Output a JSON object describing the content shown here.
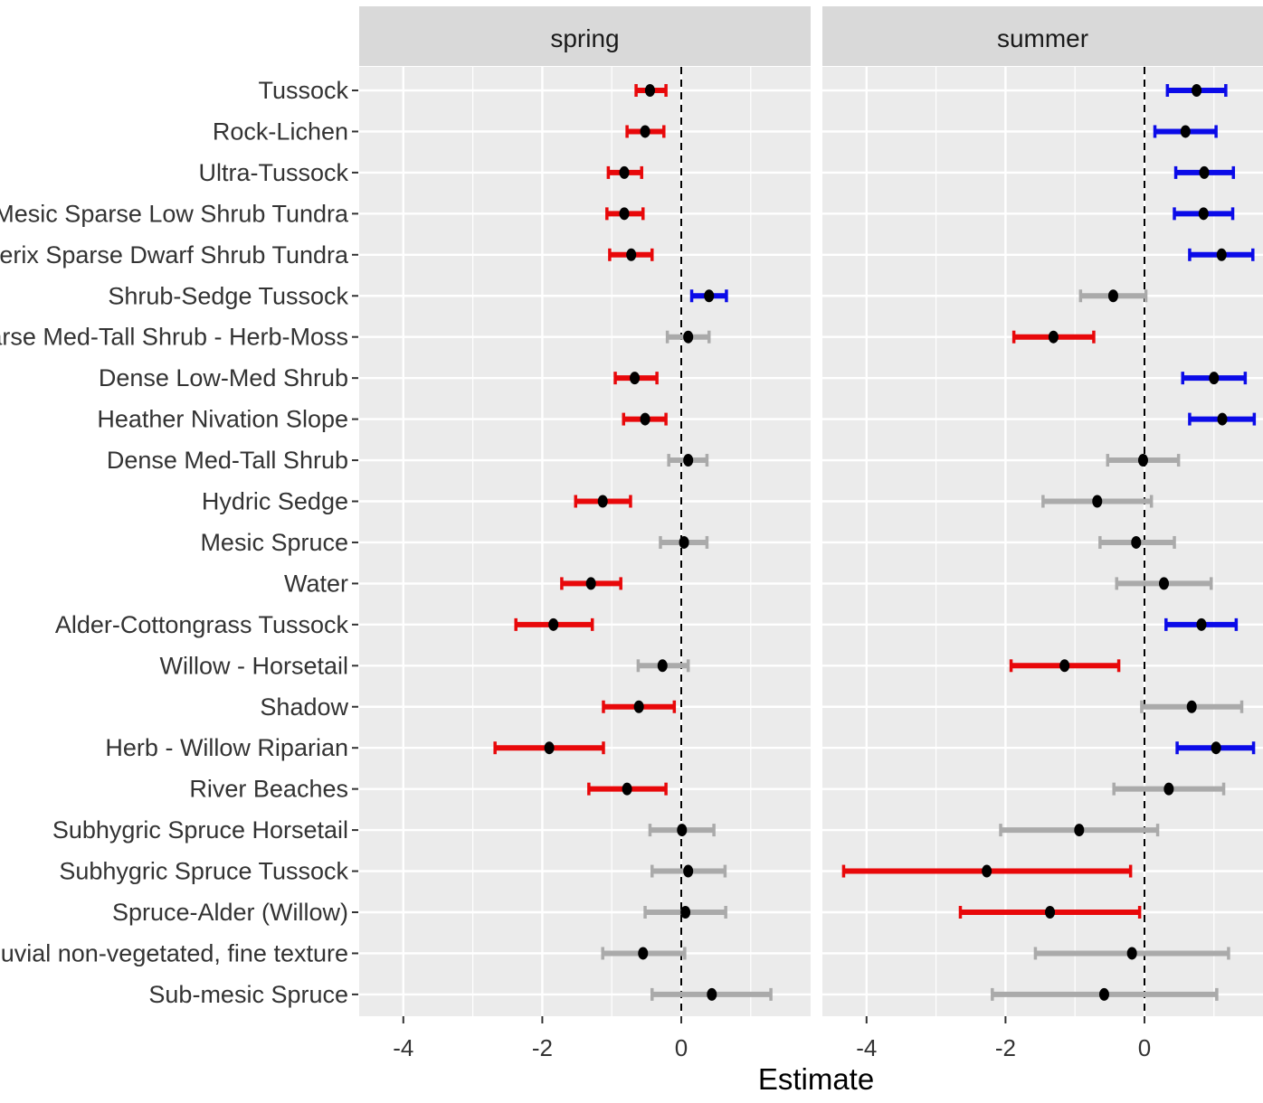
{
  "chart_data": {
    "type": "forest",
    "xlabel": "Estimate",
    "x_ticks": [
      -4,
      -2,
      0
    ],
    "xlim": [
      -4.65,
      1.7
    ],
    "reference_line": 0,
    "colors": {
      "negative": "#e8080a",
      "positive": "#0b0be8",
      "nonsignificant": "#aaaaaa",
      "point": "#000000",
      "panel": "#ebebeb",
      "grid": "#ffffff",
      "strip": "#d9d9d9"
    },
    "categories": [
      "Tussock",
      "Rock-Lichen",
      "Ultra-Tussock",
      "Mesic Sparse Low Shrub Tundra",
      "Subxerix Sparse Dwarf Shrub Tundra",
      "Shrub-Sedge Tussock",
      "Shg Sparse Med-Tall Shrub - Herb-Moss",
      "Dense Low-Med Shrub",
      "Heather Nivation Slope",
      "Dense Med-Tall Shrub",
      "Hydric Sedge",
      "Mesic Spruce",
      "Water",
      "Alder-Cottongrass Tussock",
      "Willow - Horsetail",
      "Shadow",
      "Herb - Willow Riparian",
      "River Beaches",
      "Subhygric Spruce Horsetail",
      "Subhygric Spruce Tussock",
      "Spruce-Alder (Willow)",
      "Alluvial non-vegetated, fine texture",
      "Sub-mesic Spruce"
    ],
    "panels": [
      {
        "name": "spring",
        "series": [
          {
            "estimate": -0.45,
            "lower": -0.65,
            "upper": -0.22,
            "sig": "negative"
          },
          {
            "estimate": -0.52,
            "lower": -0.78,
            "upper": -0.25,
            "sig": "negative"
          },
          {
            "estimate": -0.82,
            "lower": -1.05,
            "upper": -0.57,
            "sig": "negative"
          },
          {
            "estimate": -0.82,
            "lower": -1.07,
            "upper": -0.55,
            "sig": "negative"
          },
          {
            "estimate": -0.72,
            "lower": -1.03,
            "upper": -0.42,
            "sig": "negative"
          },
          {
            "estimate": 0.4,
            "lower": 0.15,
            "upper": 0.65,
            "sig": "positive"
          },
          {
            "estimate": 0.1,
            "lower": -0.2,
            "upper": 0.4,
            "sig": "nonsignificant"
          },
          {
            "estimate": -0.67,
            "lower": -0.95,
            "upper": -0.35,
            "sig": "negative"
          },
          {
            "estimate": -0.52,
            "lower": -0.83,
            "upper": -0.22,
            "sig": "negative"
          },
          {
            "estimate": 0.1,
            "lower": -0.18,
            "upper": 0.37,
            "sig": "nonsignificant"
          },
          {
            "estimate": -1.13,
            "lower": -1.52,
            "upper": -0.73,
            "sig": "negative"
          },
          {
            "estimate": 0.04,
            "lower": -0.3,
            "upper": 0.37,
            "sig": "nonsignificant"
          },
          {
            "estimate": -1.3,
            "lower": -1.72,
            "upper": -0.87,
            "sig": "negative"
          },
          {
            "estimate": -1.84,
            "lower": -2.38,
            "upper": -1.28,
            "sig": "negative"
          },
          {
            "estimate": -0.27,
            "lower": -0.62,
            "upper": 0.1,
            "sig": "nonsignificant"
          },
          {
            "estimate": -0.61,
            "lower": -1.12,
            "upper": -0.1,
            "sig": "negative"
          },
          {
            "estimate": -1.9,
            "lower": -2.68,
            "upper": -1.12,
            "sig": "negative"
          },
          {
            "estimate": -0.78,
            "lower": -1.33,
            "upper": -0.22,
            "sig": "negative"
          },
          {
            "estimate": 0.01,
            "lower": -0.45,
            "upper": 0.47,
            "sig": "nonsignificant"
          },
          {
            "estimate": 0.1,
            "lower": -0.42,
            "upper": 0.63,
            "sig": "nonsignificant"
          },
          {
            "estimate": 0.06,
            "lower": -0.52,
            "upper": 0.64,
            "sig": "nonsignificant"
          },
          {
            "estimate": -0.55,
            "lower": -1.13,
            "upper": 0.05,
            "sig": "nonsignificant"
          },
          {
            "estimate": 0.44,
            "lower": -0.42,
            "upper": 1.29,
            "sig": "nonsignificant"
          }
        ]
      },
      {
        "name": "summer",
        "series": [
          {
            "estimate": 0.75,
            "lower": 0.33,
            "upper": 1.17,
            "sig": "positive"
          },
          {
            "estimate": 0.59,
            "lower": 0.15,
            "upper": 1.03,
            "sig": "positive"
          },
          {
            "estimate": 0.86,
            "lower": 0.45,
            "upper": 1.28,
            "sig": "positive"
          },
          {
            "estimate": 0.85,
            "lower": 0.43,
            "upper": 1.27,
            "sig": "positive"
          },
          {
            "estimate": 1.11,
            "lower": 0.65,
            "upper": 1.56,
            "sig": "positive"
          },
          {
            "estimate": -0.45,
            "lower": -0.92,
            "upper": 0.02,
            "sig": "nonsignificant"
          },
          {
            "estimate": -1.31,
            "lower": -1.88,
            "upper": -0.73,
            "sig": "negative"
          },
          {
            "estimate": 1.0,
            "lower": 0.55,
            "upper": 1.45,
            "sig": "positive"
          },
          {
            "estimate": 1.12,
            "lower": 0.65,
            "upper": 1.58,
            "sig": "positive"
          },
          {
            "estimate": -0.02,
            "lower": -0.53,
            "upper": 0.49,
            "sig": "nonsignificant"
          },
          {
            "estimate": -0.68,
            "lower": -1.46,
            "upper": 0.1,
            "sig": "nonsignificant"
          },
          {
            "estimate": -0.12,
            "lower": -0.64,
            "upper": 0.43,
            "sig": "nonsignificant"
          },
          {
            "estimate": 0.28,
            "lower": -0.4,
            "upper": 0.96,
            "sig": "nonsignificant"
          },
          {
            "estimate": 0.82,
            "lower": 0.31,
            "upper": 1.32,
            "sig": "positive"
          },
          {
            "estimate": -1.15,
            "lower": -1.92,
            "upper": -0.37,
            "sig": "negative"
          },
          {
            "estimate": 0.68,
            "lower": -0.04,
            "upper": 1.4,
            "sig": "nonsignificant"
          },
          {
            "estimate": 1.03,
            "lower": 0.47,
            "upper": 1.57,
            "sig": "positive"
          },
          {
            "estimate": 0.35,
            "lower": -0.44,
            "upper": 1.14,
            "sig": "nonsignificant"
          },
          {
            "estimate": -0.94,
            "lower": -2.07,
            "upper": 0.19,
            "sig": "nonsignificant"
          },
          {
            "estimate": -2.27,
            "lower": -4.33,
            "upper": -0.2,
            "sig": "negative"
          },
          {
            "estimate": -1.36,
            "lower": -2.65,
            "upper": -0.07,
            "sig": "negative"
          },
          {
            "estimate": -0.18,
            "lower": -1.57,
            "upper": 1.21,
            "sig": "nonsignificant"
          },
          {
            "estimate": -0.58,
            "lower": -2.19,
            "upper": 1.04,
            "sig": "nonsignificant"
          }
        ]
      }
    ]
  }
}
